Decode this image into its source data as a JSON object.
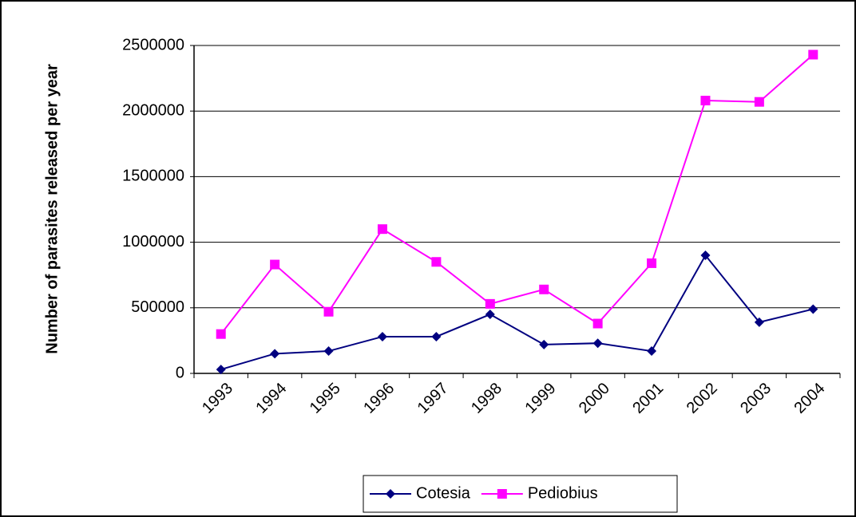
{
  "chart_data": {
    "type": "line",
    "y_label": "Number of parasites released per year",
    "categories": [
      "1993",
      "1994",
      "1995",
      "1996",
      "1997",
      "1998",
      "1999",
      "2000",
      "2001",
      "2002",
      "2003",
      "2004"
    ],
    "series": [
      {
        "name": "Cotesia",
        "color": "#000080",
        "marker": "diamond",
        "values": [
          30000,
          150000,
          170000,
          280000,
          280000,
          450000,
          220000,
          230000,
          170000,
          900000,
          390000,
          490000
        ]
      },
      {
        "name": "Pediobius",
        "color": "#ff00ff",
        "marker": "square",
        "values": [
          300000,
          830000,
          470000,
          1100000,
          850000,
          530000,
          640000,
          380000,
          840000,
          2080000,
          2070000,
          2430000
        ]
      }
    ],
    "ylim": [
      0,
      2500000
    ],
    "yticks": [
      0,
      500000,
      1000000,
      1500000,
      2000000,
      2500000
    ],
    "grid": true,
    "legend": "bottom"
  }
}
